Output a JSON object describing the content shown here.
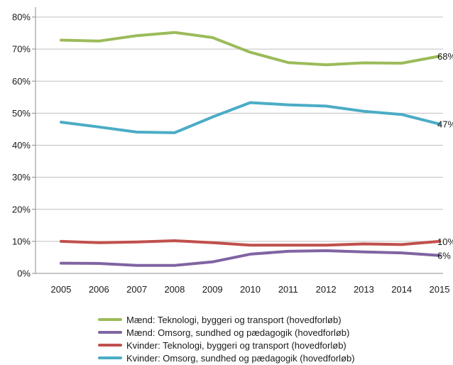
{
  "chart_data": {
    "type": "line",
    "title": "",
    "xlabel": "",
    "ylabel": "",
    "categories": [
      "2005",
      "2006",
      "2007",
      "2008",
      "2009",
      "2010",
      "2011",
      "2012",
      "2013",
      "2014",
      "2015"
    ],
    "ylim": [
      0,
      80
    ],
    "y_ticks": [
      "0%",
      "10%",
      "20%",
      "30%",
      "40%",
      "50%",
      "60%",
      "70%",
      "80%"
    ],
    "grid": "horizontal",
    "legend_position": "bottom",
    "series": [
      {
        "name": "Mænd: Teknologi, byggeri og transport (hovedforløb)",
        "color": "#9bbb59",
        "values": [
          72.8,
          72.5,
          74.2,
          75.2,
          73.6,
          69.0,
          65.8,
          65.1,
          65.7,
          65.6,
          67.8
        ],
        "end_label": "68%"
      },
      {
        "name": "Mænd: Omsorg, sundhed og pædagogik (hovedforløb)",
        "color": "#8064a2",
        "values": [
          3.2,
          3.1,
          2.5,
          2.5,
          3.6,
          6.0,
          6.9,
          7.1,
          6.7,
          6.4,
          5.6
        ],
        "end_label": "6%"
      },
      {
        "name": "Kvinder: Teknologi, byggeri og transport (hovedforløb)",
        "color": "#c0504d",
        "values": [
          10.0,
          9.6,
          9.8,
          10.2,
          9.6,
          8.8,
          8.8,
          8.8,
          9.2,
          9.0,
          10.0
        ],
        "end_label": "10%"
      },
      {
        "name": "Kvinder: Omsorg, sundhed og pædagogik (hovedforløb)",
        "color": "#4bacc6",
        "values": [
          47.2,
          45.7,
          44.1,
          43.9,
          48.8,
          53.3,
          52.6,
          52.2,
          50.6,
          49.6,
          46.6
        ],
        "end_label": "47%"
      }
    ]
  }
}
